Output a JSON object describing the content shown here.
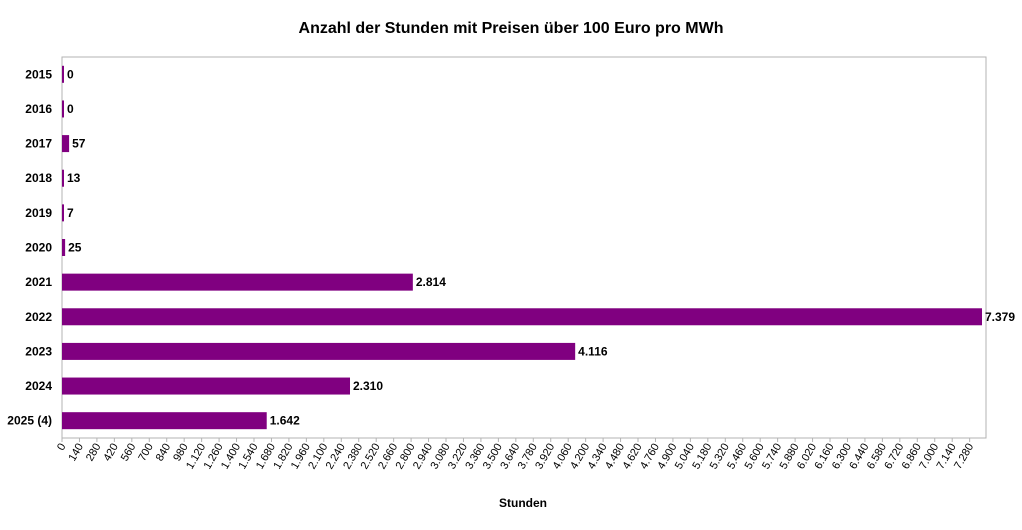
{
  "chart_data": {
    "type": "bar",
    "orientation": "horizontal",
    "title": "Anzahl der Stunden mit Preisen über 100 Euro pro MWh",
    "xlabel": "Stunden",
    "ylabel": "",
    "categories": [
      "2015",
      "2016",
      "2017",
      "2018",
      "2019",
      "2020",
      "2021",
      "2022",
      "2023",
      "2024",
      "2025 (4)"
    ],
    "values": [
      0,
      0,
      57,
      13,
      7,
      25,
      2814,
      7379,
      4116,
      2310,
      1642
    ],
    "value_labels": [
      "0",
      "0",
      "57",
      "13",
      "7",
      "25",
      "2.814",
      "7.379",
      "4.116",
      "2.310",
      "1.642"
    ],
    "xlim": [
      0,
      7379
    ],
    "ticks": [
      "0",
      "140",
      "280",
      "420",
      "560",
      "700",
      "840",
      "980",
      "1.120",
      "1.260",
      "1.400",
      "1.540",
      "1.680",
      "1.820",
      "1.960",
      "2.100",
      "2.240",
      "2.380",
      "2.520",
      "2.660",
      "2.800",
      "2.940",
      "3.080",
      "3.220",
      "3.360",
      "3.500",
      "3.640",
      "3.780",
      "3.920",
      "4.060",
      "4.200",
      "4.340",
      "4.480",
      "4.620",
      "4.760",
      "4.900",
      "5.040",
      "5.180",
      "5.320",
      "5.460",
      "5.600",
      "5.740",
      "5.880",
      "6.020",
      "6.160",
      "6.300",
      "6.440",
      "6.580",
      "6.720",
      "6.860",
      "7.000",
      "7.140",
      "7.280"
    ],
    "tick_step": 140,
    "grid": false,
    "legend": "none",
    "bar_color": "#800080"
  }
}
